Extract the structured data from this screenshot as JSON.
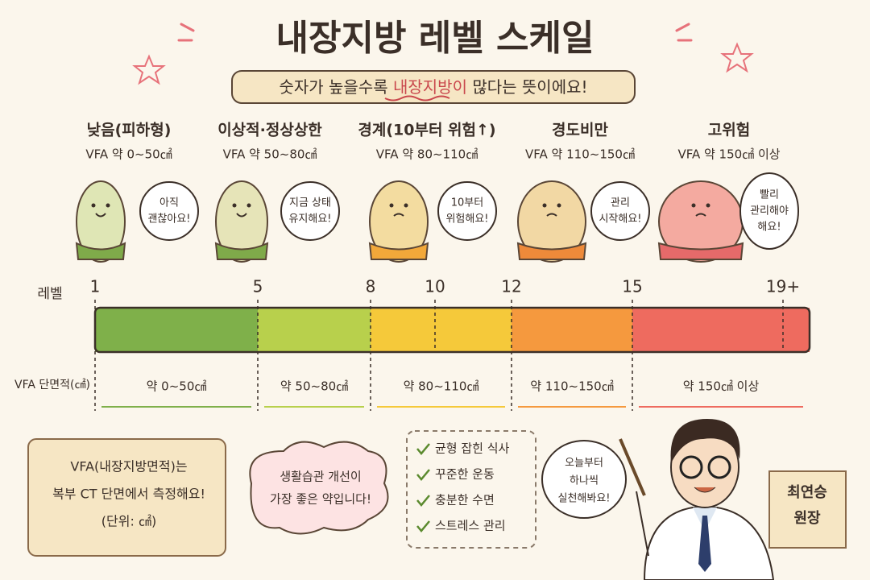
{
  "title": "내장지방 레벨 스케일",
  "subtitle": {
    "before": "숫자가 높을수록 ",
    "highlight": "내장지방이",
    "after": " 많다는 뜻이에요!"
  },
  "levels": [
    {
      "name": "낮음(피하형)",
      "range": "VFA 약 0~50㎠",
      "bubble": [
        "아직",
        "괜찮아요!"
      ],
      "vfa": "약 0~50㎠"
    },
    {
      "name": "이상적·정상상한",
      "range": "VFA 약 50~80㎠",
      "bubble": [
        "지금 상태",
        "유지해요!"
      ],
      "vfa": "약 50~80㎠"
    },
    {
      "name": "경계(10부터 위험↑)",
      "range": "VFA 약 80~110㎠",
      "bubble": [
        "10부터",
        "위험해요!"
      ],
      "vfa": "약 80~110㎠"
    },
    {
      "name": "경도비만",
      "range": "VFA 약 110~150㎠",
      "bubble": [
        "관리",
        "시작해요!"
      ],
      "vfa": "약 110~150㎠"
    },
    {
      "name": "고위험",
      "range": "VFA 약 150㎠ 이상",
      "bubble": [
        "빨리",
        "관리해야",
        "해요!"
      ],
      "vfa": "약 150㎠ 이상"
    }
  ],
  "scale": {
    "label": "레벨",
    "ticks": [
      "1",
      "5",
      "8",
      "10",
      "12",
      "15",
      "19+"
    ],
    "vfa_label": "VFA 단면적(㎠)"
  },
  "note": [
    "VFA(내장지방면적)는",
    "복부 CT 단면에서 측정해요!",
    "(단위: ㎠)"
  ],
  "cloud": [
    "생활습관 개선이",
    "가장 좋은 약입니다!"
  ],
  "checklist": [
    "균형 잡힌 식사",
    "꾸준한 운동",
    "충분한 수면",
    "스트레스 관리"
  ],
  "doctor": {
    "bubble": [
      "오늘부터",
      "하나씩",
      "실천해봐요!"
    ],
    "name": [
      "최연승",
      "원장"
    ]
  }
}
